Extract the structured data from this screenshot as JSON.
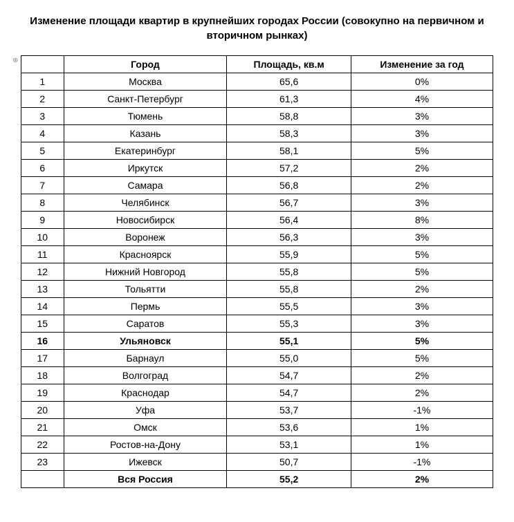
{
  "title": "Изменение площади квартир в крупнейших городах России (совокупно на первичном и вторичном рынках)",
  "table": {
    "headers": {
      "num": "",
      "city": "Город",
      "area": "Площадь, кв.м",
      "change": "Изменение за год"
    },
    "rows": [
      {
        "num": "1",
        "city": "Москва",
        "area": "65,6",
        "change": "0%",
        "bold": false
      },
      {
        "num": "2",
        "city": "Санкт-Петербург",
        "area": "61,3",
        "change": "4%",
        "bold": false
      },
      {
        "num": "3",
        "city": "Тюмень",
        "area": "58,8",
        "change": "3%",
        "bold": false
      },
      {
        "num": "4",
        "city": "Казань",
        "area": "58,3",
        "change": "3%",
        "bold": false
      },
      {
        "num": "5",
        "city": "Екатеринбург",
        "area": "58,1",
        "change": "5%",
        "bold": false
      },
      {
        "num": "6",
        "city": "Иркутск",
        "area": "57,2",
        "change": "2%",
        "bold": false
      },
      {
        "num": "7",
        "city": "Самара",
        "area": "56,8",
        "change": "2%",
        "bold": false
      },
      {
        "num": "8",
        "city": "Челябинск",
        "area": "56,7",
        "change": "3%",
        "bold": false
      },
      {
        "num": "9",
        "city": "Новосибирск",
        "area": "56,4",
        "change": "8%",
        "bold": false
      },
      {
        "num": "10",
        "city": "Воронеж",
        "area": "56,3",
        "change": "3%",
        "bold": false
      },
      {
        "num": "11",
        "city": "Красноярск",
        "area": "55,9",
        "change": "5%",
        "bold": false
      },
      {
        "num": "12",
        "city": "Нижний Новгород",
        "area": "55,8",
        "change": "5%",
        "bold": false
      },
      {
        "num": "13",
        "city": "Тольятти",
        "area": "55,8",
        "change": "2%",
        "bold": false
      },
      {
        "num": "14",
        "city": "Пермь",
        "area": "55,5",
        "change": "3%",
        "bold": false
      },
      {
        "num": "15",
        "city": "Саратов",
        "area": "55,3",
        "change": "3%",
        "bold": false
      },
      {
        "num": "16",
        "city": "Ульяновск",
        "area": "55,1",
        "change": "5%",
        "bold": true
      },
      {
        "num": "17",
        "city": "Барнаул",
        "area": "55,0",
        "change": "5%",
        "bold": false
      },
      {
        "num": "18",
        "city": "Волгоград",
        "area": "54,7",
        "change": "2%",
        "bold": false
      },
      {
        "num": "19",
        "city": "Краснодар",
        "area": "54,7",
        "change": "2%",
        "bold": false
      },
      {
        "num": "20",
        "city": "Уфа",
        "area": "53,7",
        "change": "-1%",
        "bold": false
      },
      {
        "num": "21",
        "city": "Омск",
        "area": "53,6",
        "change": "1%",
        "bold": false
      },
      {
        "num": "22",
        "city": "Ростов-на-Дону",
        "area": "53,1",
        "change": "1%",
        "bold": false
      },
      {
        "num": "23",
        "city": "Ижевск",
        "area": "50,7",
        "change": "-1%",
        "bold": false
      },
      {
        "num": "",
        "city": "Вся Россия",
        "area": "55,2",
        "change": "2%",
        "bold": true
      }
    ]
  },
  "styling": {
    "font_family": "Arial",
    "title_fontsize": 15,
    "cell_fontsize": 14,
    "border_color": "#000000",
    "text_color": "#000000",
    "background_color": "#ffffff",
    "col_widths": {
      "num": 60,
      "city": 230,
      "area": 175,
      "change": 200
    }
  }
}
